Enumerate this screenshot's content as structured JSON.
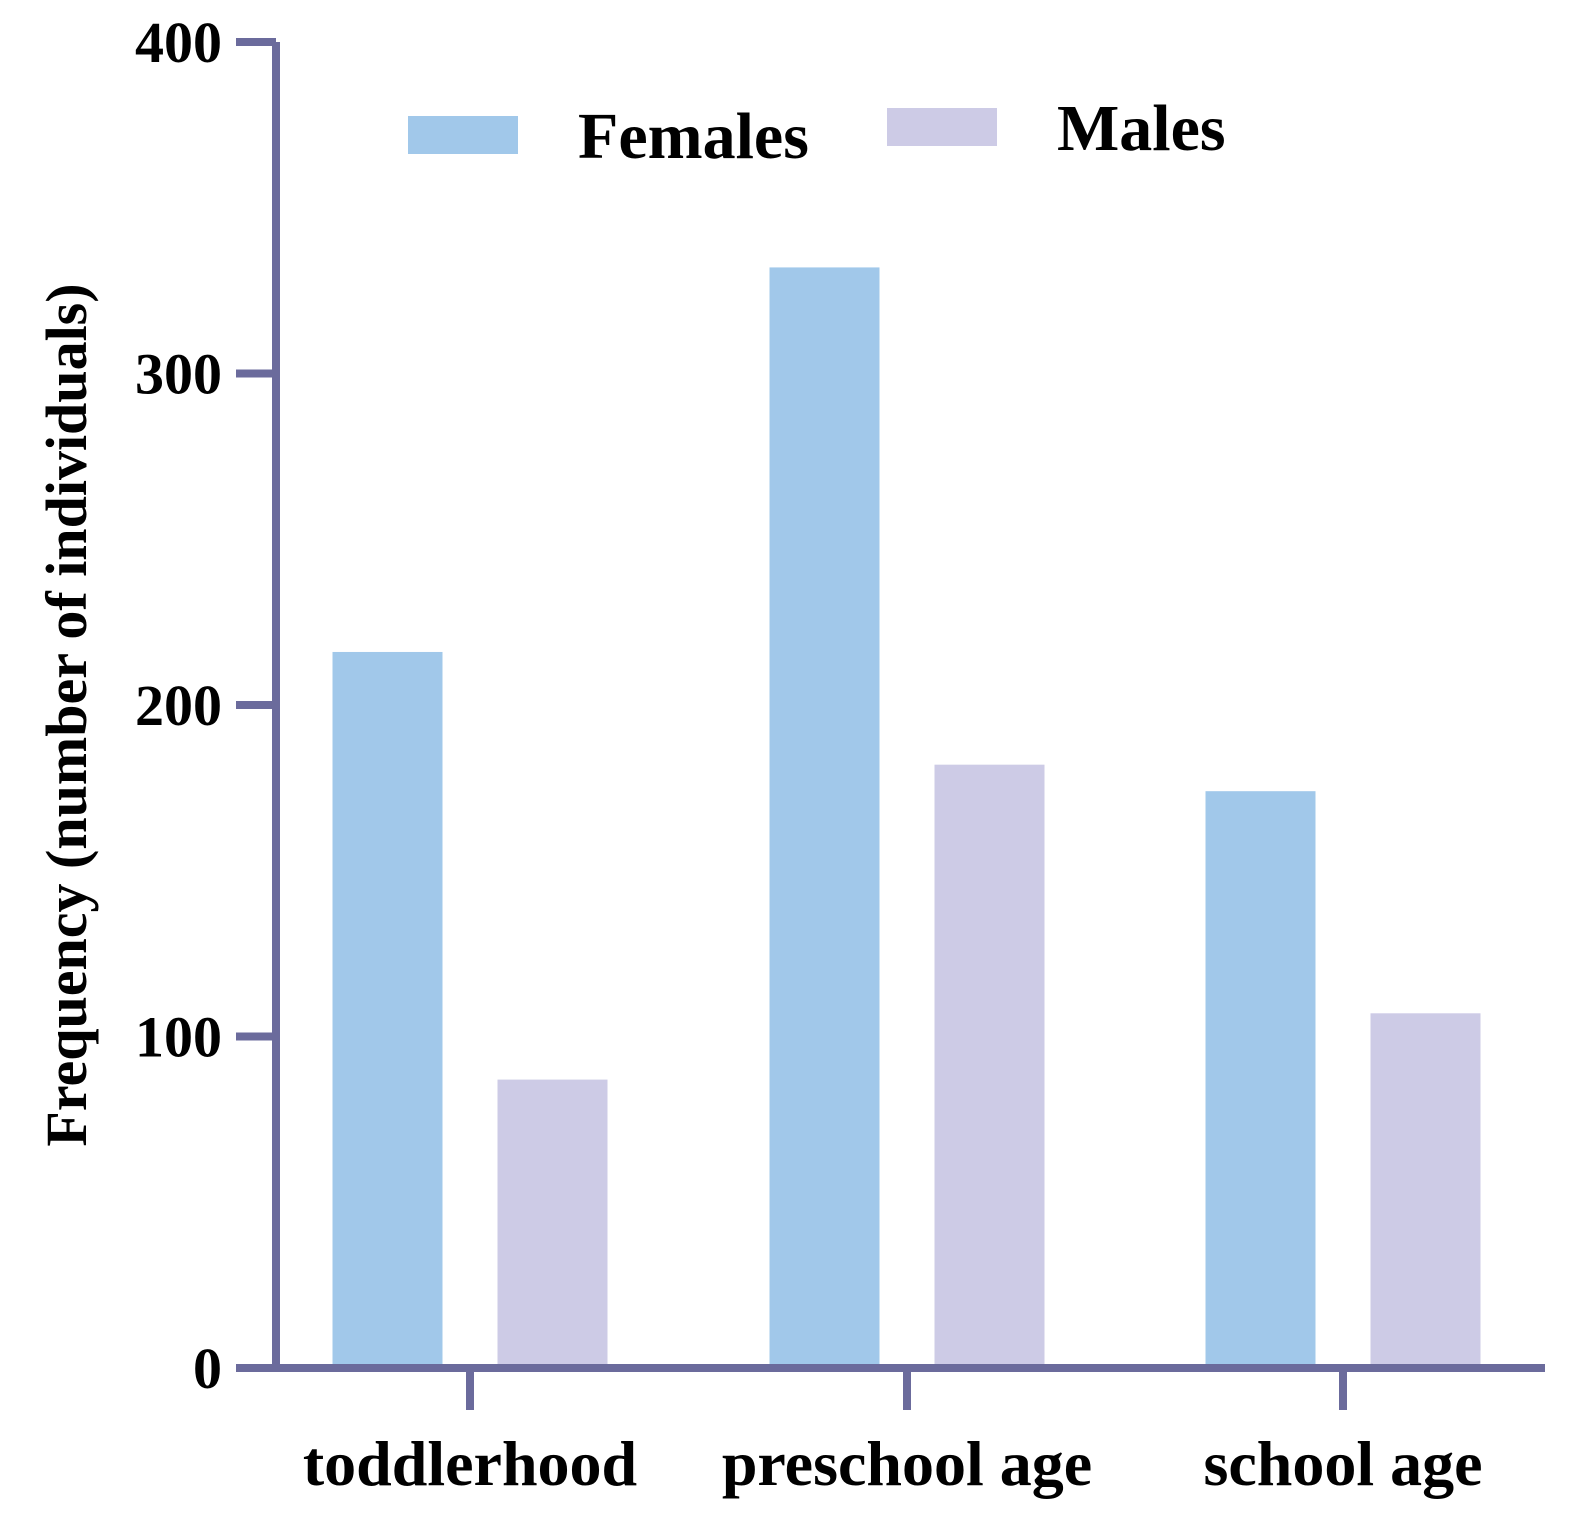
{
  "chart_data": {
    "type": "bar",
    "title": "",
    "xlabel": "",
    "ylabel": "Frequency (number of individuals)",
    "ylim": [
      0,
      400
    ],
    "yticks": [
      "0",
      "100",
      "200",
      "300",
      "400"
    ],
    "categories": [
      "toddlerhood",
      "preschool age",
      "school age"
    ],
    "series": [
      {
        "name": "Females",
        "color": "#a1c8ea",
        "values": [
          216,
          332,
          174
        ]
      },
      {
        "name": "Males",
        "color": "#cdcbe6",
        "values": [
          87,
          182,
          107
        ]
      }
    ],
    "axis_color": "#6b6b9c",
    "grid": false,
    "legend_position": "top"
  }
}
